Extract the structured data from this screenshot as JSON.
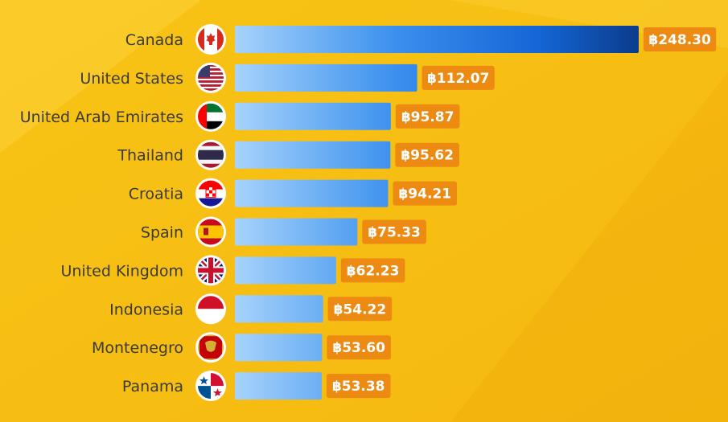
{
  "chart_data": {
    "type": "bar",
    "orientation": "horizontal",
    "categories": [
      "Canada",
      "United States",
      "United Arab Emirates",
      "Thailand",
      "Croatia",
      "Spain",
      "United Kingdom",
      "Indonesia",
      "Montenegro",
      "Panama"
    ],
    "values": [
      248.3,
      112.07,
      95.87,
      95.62,
      94.21,
      75.33,
      62.23,
      54.22,
      53.6,
      53.38
    ],
    "value_labels": [
      "฿248.30",
      "฿112.07",
      "฿95.87",
      "฿95.62",
      "฿94.21",
      "฿75.33",
      "฿62.23",
      "฿54.22",
      "฿53.60",
      "฿53.38"
    ],
    "flag_icons": [
      "canada-flag-icon",
      "united-states-flag-icon",
      "united-arab-emirates-flag-icon",
      "thailand-flag-icon",
      "croatia-flag-icon",
      "spain-flag-icon",
      "united-kingdom-flag-icon",
      "indonesia-flag-icon",
      "montenegro-flag-icon",
      "panama-flag-icon"
    ],
    "title": "",
    "xlabel": "",
    "ylabel": "",
    "xlim": [
      0,
      248.3
    ],
    "grid": false,
    "legend": "none"
  },
  "colors": {
    "background": "#f6bd12",
    "bar_light": "#a7d3fb",
    "bar_mid": "#3a8fee",
    "bar_dark": "#0a3c8c",
    "value_badge": "#ec8a12",
    "label_text": "#3a3a3a"
  }
}
